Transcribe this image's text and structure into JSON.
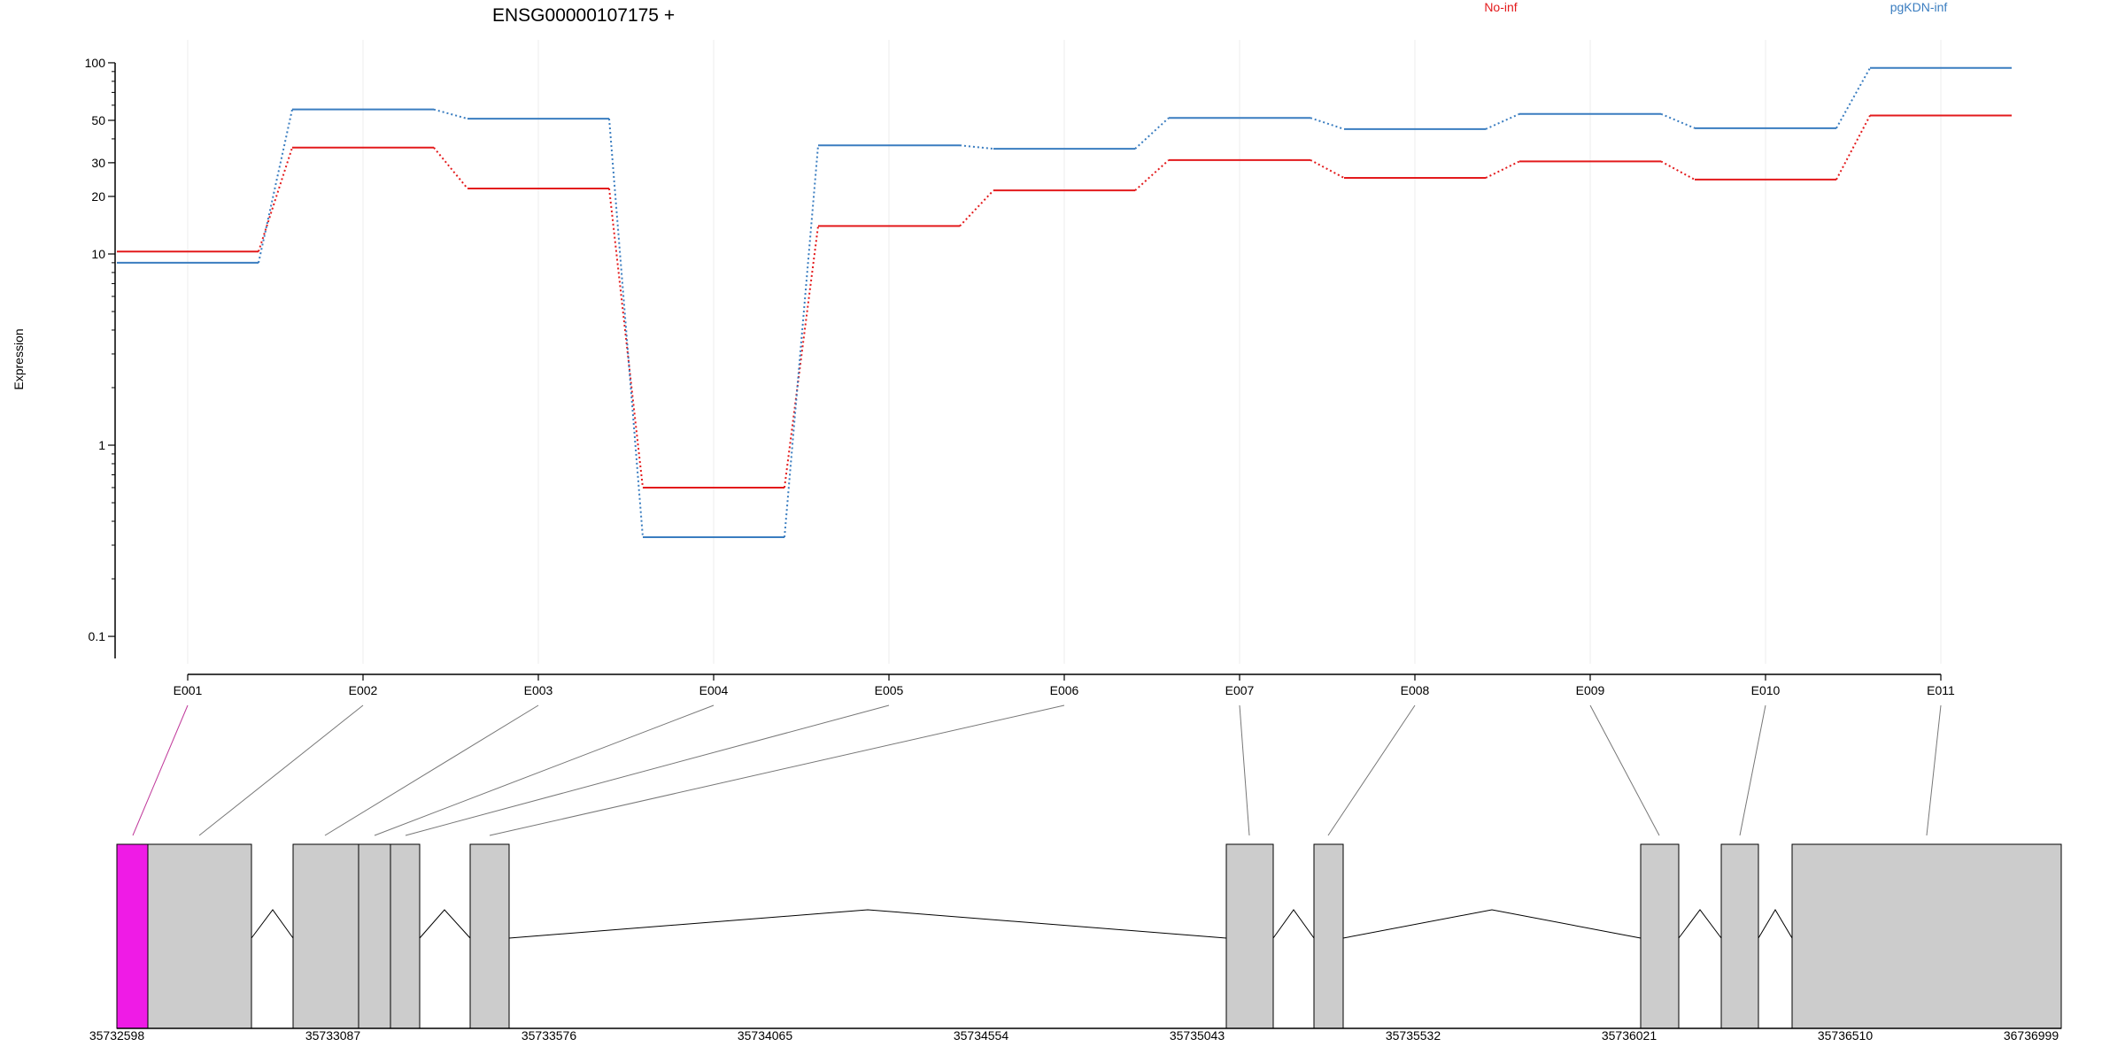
{
  "chart_data": {
    "type": "line",
    "title": "ENSG00000107175 +",
    "ylabel": "Expression",
    "yscale": "log",
    "ylim": [
      0.08,
      110
    ],
    "grid": "vertical",
    "legend_position": "top",
    "yticks": [
      {
        "value": 100,
        "label": "100"
      },
      {
        "value": 50,
        "label": "50"
      },
      {
        "value": 30,
        "label": "30"
      },
      {
        "value": 20,
        "label": "20"
      },
      {
        "value": 10,
        "label": "10"
      },
      {
        "value": 1,
        "label": "1"
      },
      {
        "value": 0.1,
        "label": "0.1"
      }
    ],
    "categories": [
      "E001",
      "E002",
      "E003",
      "E004",
      "E005",
      "E006",
      "E007",
      "E008",
      "E009",
      "E010",
      "E011"
    ],
    "series": [
      {
        "name": "No-inf",
        "color": "#e31a1c",
        "values": [
          10.3,
          36,
          22,
          0.6,
          14,
          21.5,
          31,
          25,
          30.5,
          24.5,
          53
        ]
      },
      {
        "name": "pgKDN-inf",
        "color": "#3a7dc0",
        "values": [
          9,
          57,
          51,
          0.33,
          37,
          35.5,
          51.5,
          45,
          54,
          45.5,
          94
        ]
      }
    ],
    "gene_model": {
      "coordinate_labels": [
        "35732598",
        "35733087",
        "35733576",
        "35734065",
        "35734554",
        "35735043",
        "35735532",
        "35736021",
        "35736510",
        "36736999"
      ],
      "highlight_color": "#ef1be6",
      "exon_color": "#cccccc"
    }
  }
}
